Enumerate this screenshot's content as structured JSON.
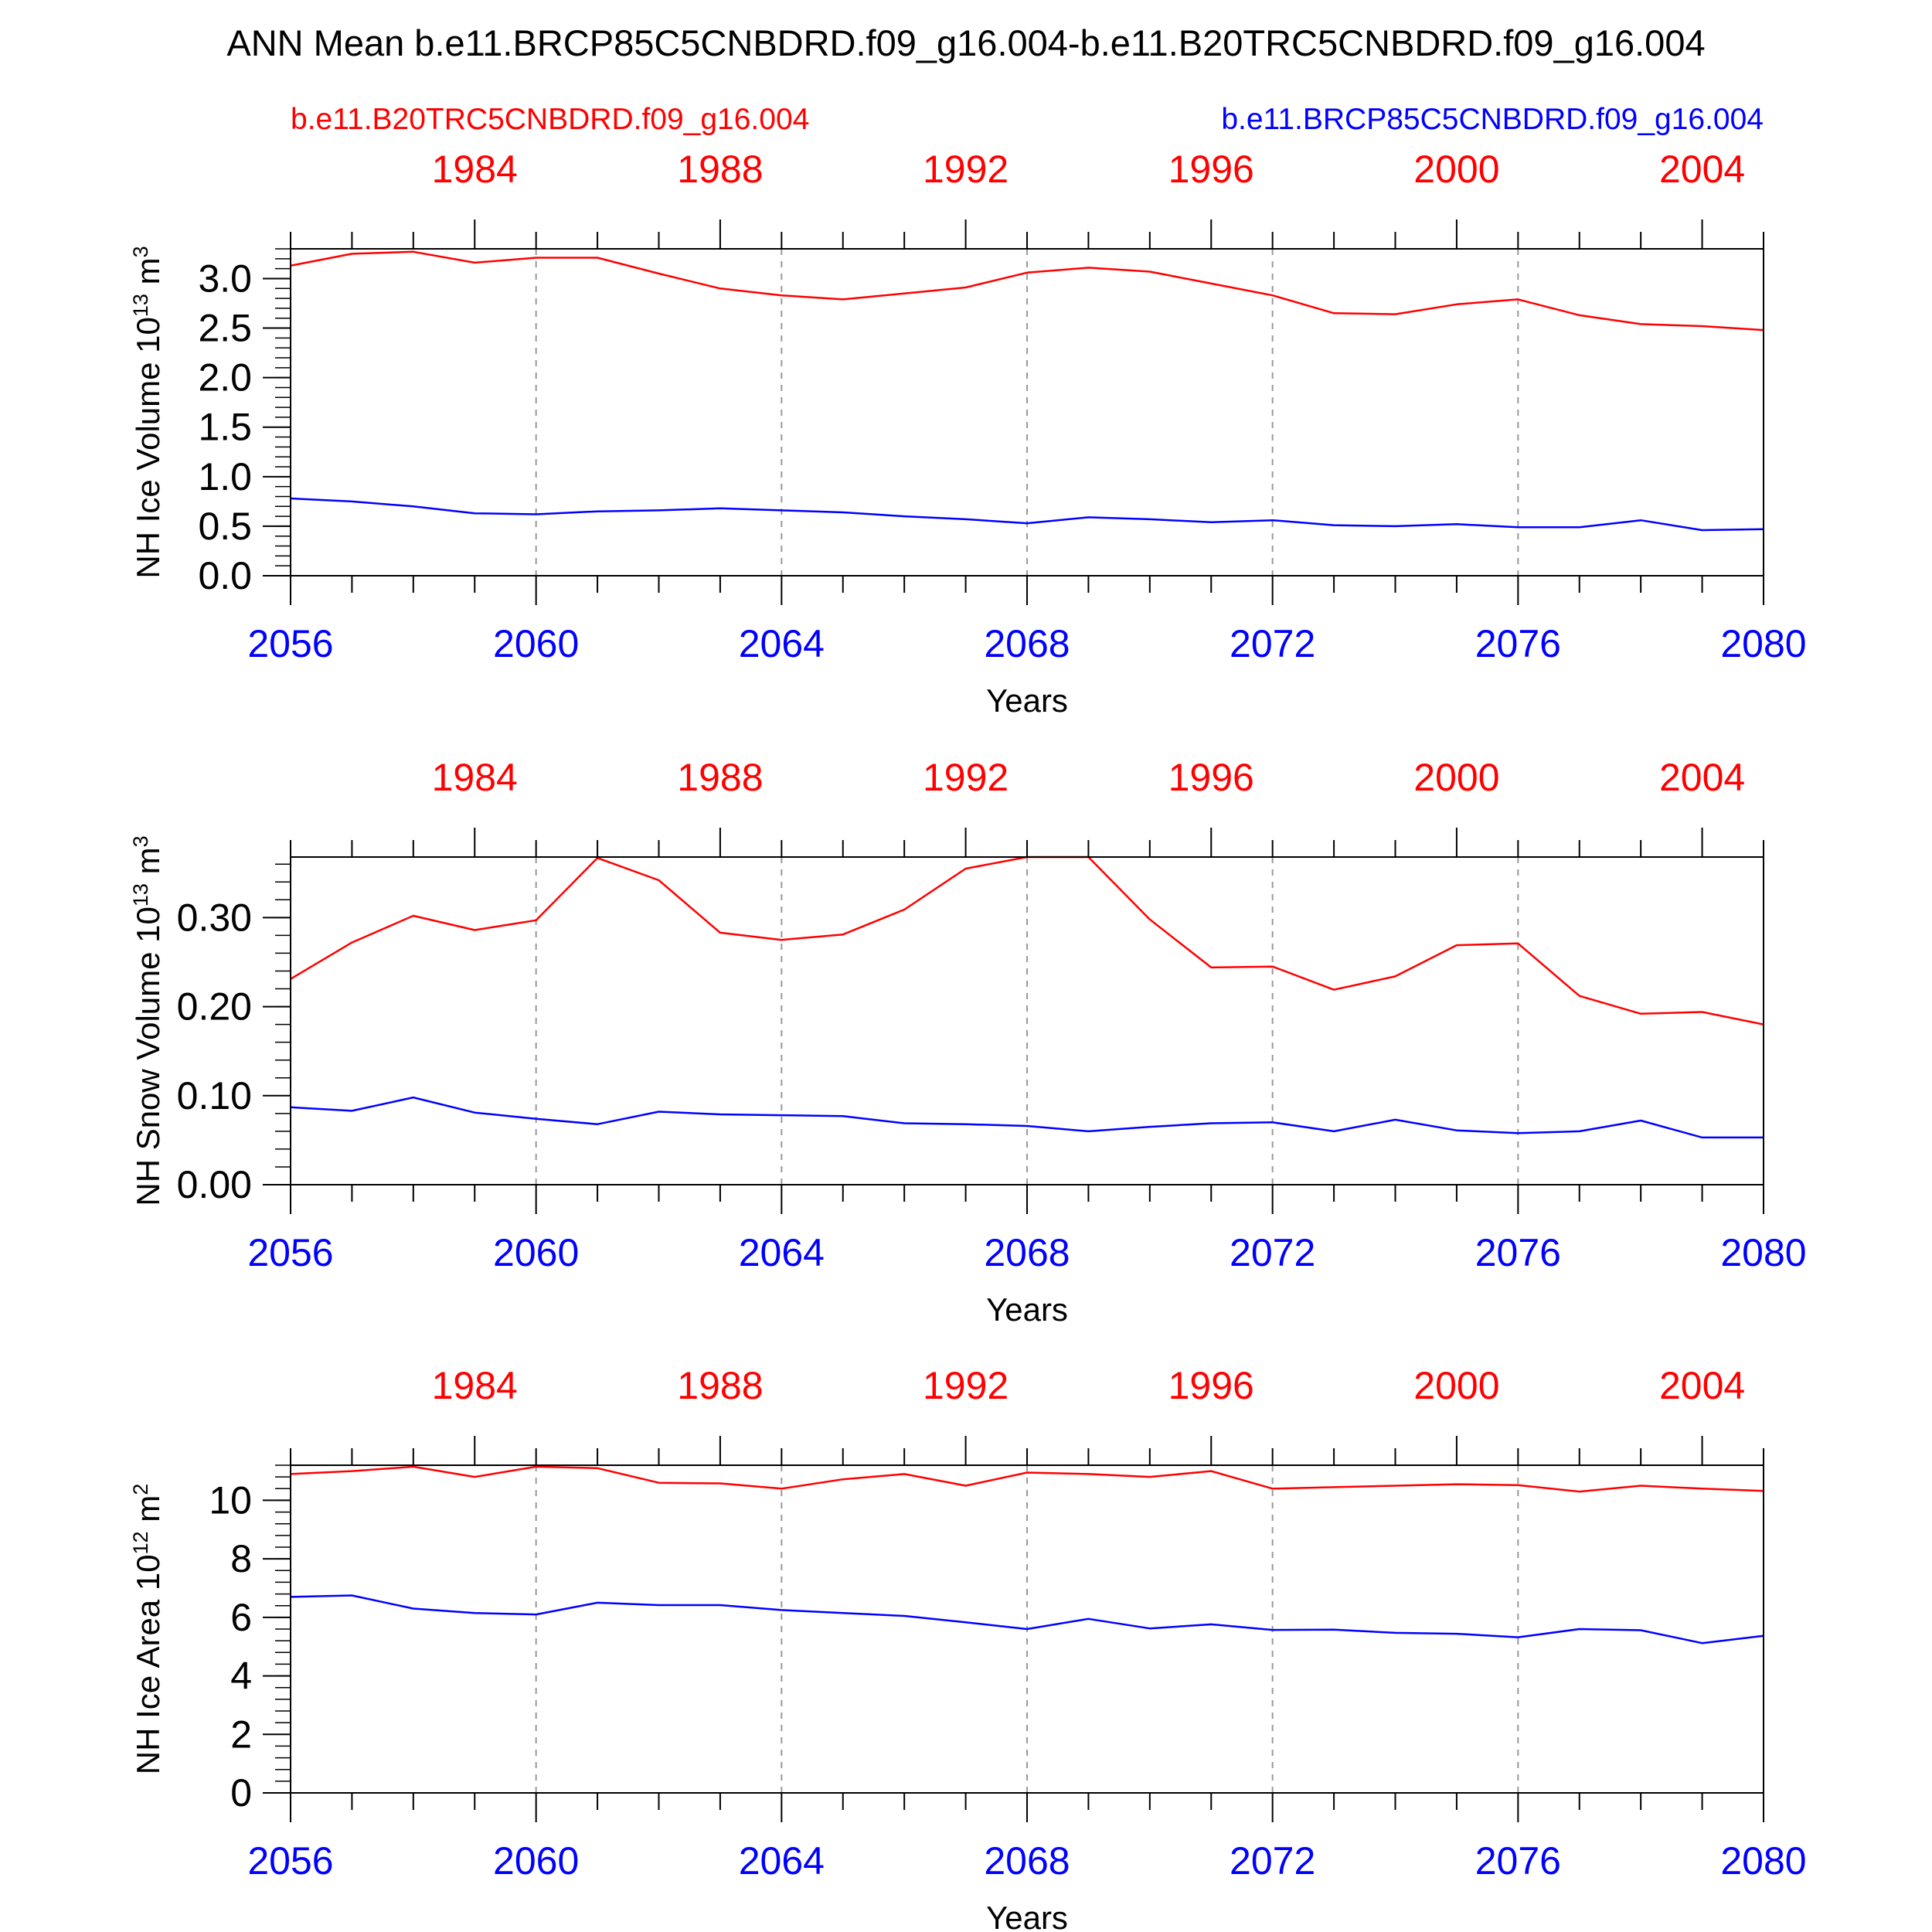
{
  "title": "ANN Mean b.e11.BRCP85C5CNBDRD.f09_g16.004-b.e11.B20TRC5CNBDRD.f09_g16.004",
  "legend": {
    "left": "b.e11.B20TRC5CNBDRD.f09_g16.004",
    "right": "b.e11.BRCP85C5CNBDRD.f09_g16.004"
  },
  "colors": {
    "series_a": "#ff0000",
    "series_b": "#0000ff",
    "axis": "#000000",
    "grid": "#999999"
  },
  "chart_data": [
    {
      "type": "line",
      "ylabel": "NH Ice Volume 10",
      "ylabel_exp": "13",
      "ylabel_unit": " m",
      "ylabel_unit_exp": "3",
      "xlabel": "Years",
      "ylim": [
        0,
        3.3
      ],
      "yticks": [
        "0.0",
        "0.5",
        "1.0",
        "1.5",
        "2.0",
        "2.5",
        "3.0"
      ],
      "ytick_values": [
        0,
        0.5,
        1.0,
        1.5,
        2.0,
        2.5,
        3.0
      ],
      "yminor_step": 0.1,
      "x_bottom": {
        "ticks": [
          "2056",
          "2060",
          "2064",
          "2068",
          "2072",
          "2076",
          "2080"
        ],
        "range": [
          2056,
          2080
        ]
      },
      "x_top": {
        "ticks": [
          "1984",
          "1988",
          "1992",
          "1996",
          "2000",
          "2004"
        ],
        "range": [
          1981,
          2005
        ]
      },
      "series": [
        {
          "color": "red",
          "x": [
            1981,
            1982,
            1983,
            1984,
            1985,
            1986,
            1987,
            1988,
            1989,
            1990,
            1991,
            1992,
            1993,
            1994,
            1995,
            1996,
            1997,
            1998,
            1999,
            2000,
            2001,
            2002,
            2003,
            2004,
            2005
          ],
          "values": [
            3.13,
            3.25,
            3.27,
            3.16,
            3.21,
            3.21,
            3.05,
            2.9,
            2.83,
            2.79,
            2.85,
            2.91,
            3.06,
            3.11,
            3.07,
            2.95,
            2.83,
            2.65,
            2.64,
            2.74,
            2.79,
            2.63,
            2.54,
            2.52,
            2.48
          ]
        },
        {
          "color": "blue",
          "x": [
            2056,
            2057,
            2058,
            2059,
            2060,
            2061,
            2062,
            2063,
            2064,
            2065,
            2066,
            2067,
            2068,
            2069,
            2070,
            2071,
            2072,
            2073,
            2074,
            2075,
            2076,
            2077,
            2078,
            2079,
            2080
          ],
          "values": [
            0.78,
            0.75,
            0.7,
            0.63,
            0.62,
            0.65,
            0.66,
            0.68,
            0.66,
            0.64,
            0.6,
            0.57,
            0.53,
            0.59,
            0.57,
            0.54,
            0.56,
            0.51,
            0.5,
            0.52,
            0.49,
            0.49,
            0.56,
            0.46,
            0.47
          ]
        }
      ]
    },
    {
      "type": "line",
      "ylabel": "NH Snow Volume 10",
      "ylabel_exp": "13",
      "ylabel_unit": " m",
      "ylabel_unit_exp": "3",
      "xlabel": "Years",
      "ylim": [
        0,
        0.368
      ],
      "yticks": [
        "0.00",
        "0.10",
        "0.20",
        "0.30"
      ],
      "ytick_values": [
        0,
        0.1,
        0.2,
        0.3
      ],
      "yminor_step": 0.02,
      "x_bottom": {
        "ticks": [
          "2056",
          "2060",
          "2064",
          "2068",
          "2072",
          "2076",
          "2080"
        ],
        "range": [
          2056,
          2080
        ]
      },
      "x_top": {
        "ticks": [
          "1984",
          "1988",
          "1992",
          "1996",
          "2000",
          "2004"
        ],
        "range": [
          1981,
          2005
        ]
      },
      "series": [
        {
          "color": "red",
          "x": [
            1981,
            1982,
            1983,
            1984,
            1985,
            1986,
            1987,
            1988,
            1989,
            1990,
            1991,
            1992,
            1993,
            1994,
            1995,
            1996,
            1997,
            1998,
            1999,
            2000,
            2001,
            2002,
            2003,
            2004,
            2005
          ],
          "values": [
            0.231,
            0.272,
            0.302,
            0.286,
            0.297,
            0.367,
            0.342,
            0.283,
            0.275,
            0.281,
            0.309,
            0.355,
            0.368,
            0.368,
            0.298,
            0.244,
            0.245,
            0.219,
            0.234,
            0.269,
            0.271,
            0.212,
            0.192,
            0.194,
            0.18
          ]
        },
        {
          "color": "blue",
          "x": [
            2056,
            2057,
            2058,
            2059,
            2060,
            2061,
            2062,
            2063,
            2064,
            2065,
            2066,
            2067,
            2068,
            2069,
            2070,
            2071,
            2072,
            2073,
            2074,
            2075,
            2076,
            2077,
            2078,
            2079,
            2080
          ],
          "values": [
            0.087,
            0.083,
            0.098,
            0.081,
            0.074,
            0.068,
            0.082,
            0.079,
            0.078,
            0.077,
            0.069,
            0.068,
            0.066,
            0.06,
            0.065,
            0.069,
            0.07,
            0.06,
            0.073,
            0.061,
            0.058,
            0.06,
            0.072,
            0.053,
            0.053
          ]
        }
      ]
    },
    {
      "type": "line",
      "ylabel": "NH Ice Area 10",
      "ylabel_exp": "12",
      "ylabel_unit": " m",
      "ylabel_unit_exp": "2",
      "xlabel": "Years",
      "ylim": [
        0,
        11.2
      ],
      "yticks": [
        "0",
        "2",
        "4",
        "6",
        "8",
        "10"
      ],
      "ytick_values": [
        0,
        2,
        4,
        6,
        8,
        10
      ],
      "yminor_step": 0.4,
      "x_bottom": {
        "ticks": [
          "2056",
          "2060",
          "2064",
          "2068",
          "2072",
          "2076",
          "2080"
        ],
        "range": [
          2056,
          2080
        ]
      },
      "x_top": {
        "ticks": [
          "1984",
          "1988",
          "1992",
          "1996",
          "2000",
          "2004"
        ],
        "range": [
          1981,
          2005
        ]
      },
      "series": [
        {
          "color": "red",
          "x": [
            1981,
            1982,
            1983,
            1984,
            1985,
            1986,
            1987,
            1988,
            1989,
            1990,
            1991,
            1992,
            1993,
            1994,
            1995,
            1996,
            1997,
            1998,
            1999,
            2000,
            2001,
            2002,
            2003,
            2004,
            2005
          ],
          "values": [
            10.9,
            11.0,
            11.15,
            10.8,
            11.15,
            11.1,
            10.6,
            10.58,
            10.4,
            10.72,
            10.9,
            10.5,
            10.95,
            10.9,
            10.8,
            11.0,
            10.4,
            10.45,
            10.5,
            10.55,
            10.52,
            10.3,
            10.5,
            10.4,
            10.32
          ]
        },
        {
          "color": "blue",
          "x": [
            2056,
            2057,
            2058,
            2059,
            2060,
            2061,
            2062,
            2063,
            2064,
            2065,
            2066,
            2067,
            2068,
            2069,
            2070,
            2071,
            2072,
            2073,
            2074,
            2075,
            2076,
            2077,
            2078,
            2079,
            2080
          ],
          "values": [
            6.7,
            6.75,
            6.3,
            6.15,
            6.1,
            6.5,
            6.42,
            6.42,
            6.25,
            6.15,
            6.05,
            5.83,
            5.6,
            5.95,
            5.62,
            5.76,
            5.57,
            5.58,
            5.47,
            5.44,
            5.32,
            5.6,
            5.56,
            5.12,
            5.37
          ]
        }
      ]
    }
  ]
}
